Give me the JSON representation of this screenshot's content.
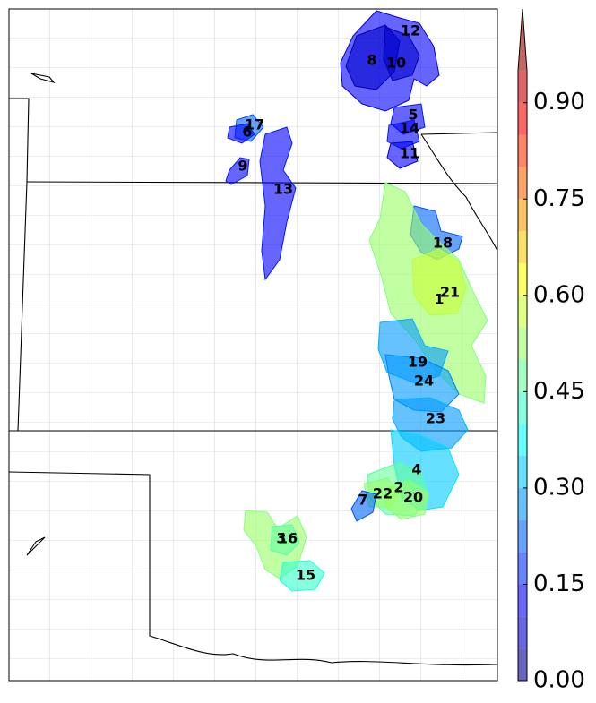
{
  "colorbar": {
    "colormap": "jet",
    "lim": [
      0,
      1
    ],
    "ticks": [
      {
        "value": 0,
        "label": "0.00"
      },
      {
        "value": 0.15,
        "label": "0.15"
      },
      {
        "value": 0.3,
        "label": "0.30"
      },
      {
        "value": 0.45,
        "label": "0.45"
      },
      {
        "value": 0.6,
        "label": "0.60"
      },
      {
        "value": 0.75,
        "label": "0.75"
      },
      {
        "value": 0.9,
        "label": "0.90"
      }
    ]
  },
  "regions": [
    {
      "label": "12",
      "value": 0.1
    },
    {
      "label": "8",
      "value": 0.05
    },
    {
      "label": "10",
      "value": 0.05
    },
    {
      "label": "5",
      "value": 0.15
    },
    {
      "label": "14",
      "value": 0.15
    },
    {
      "label": "11",
      "value": 0.1
    },
    {
      "label": "17",
      "value": 0.2
    },
    {
      "label": "6",
      "value": 0.15
    },
    {
      "label": "9",
      "value": 0.15
    },
    {
      "label": "13",
      "value": 0.15
    },
    {
      "label": "18",
      "value": 0.2
    },
    {
      "label": "1",
      "value": 0.5
    },
    {
      "label": "21",
      "value": 0.55
    },
    {
      "label": "19",
      "value": 0.3
    },
    {
      "label": "24",
      "value": 0.25
    },
    {
      "label": "23",
      "value": 0.3
    },
    {
      "label": "4",
      "value": 0.35
    },
    {
      "label": "2",
      "value": 0.45
    },
    {
      "label": "22",
      "value": 0.5
    },
    {
      "label": "20",
      "value": 0.5
    },
    {
      "label": "7",
      "value": 0.2
    },
    {
      "label": "3",
      "value": 0.5
    },
    {
      "label": "16",
      "value": 0.45
    },
    {
      "label": "15",
      "value": 0.4
    }
  ]
}
